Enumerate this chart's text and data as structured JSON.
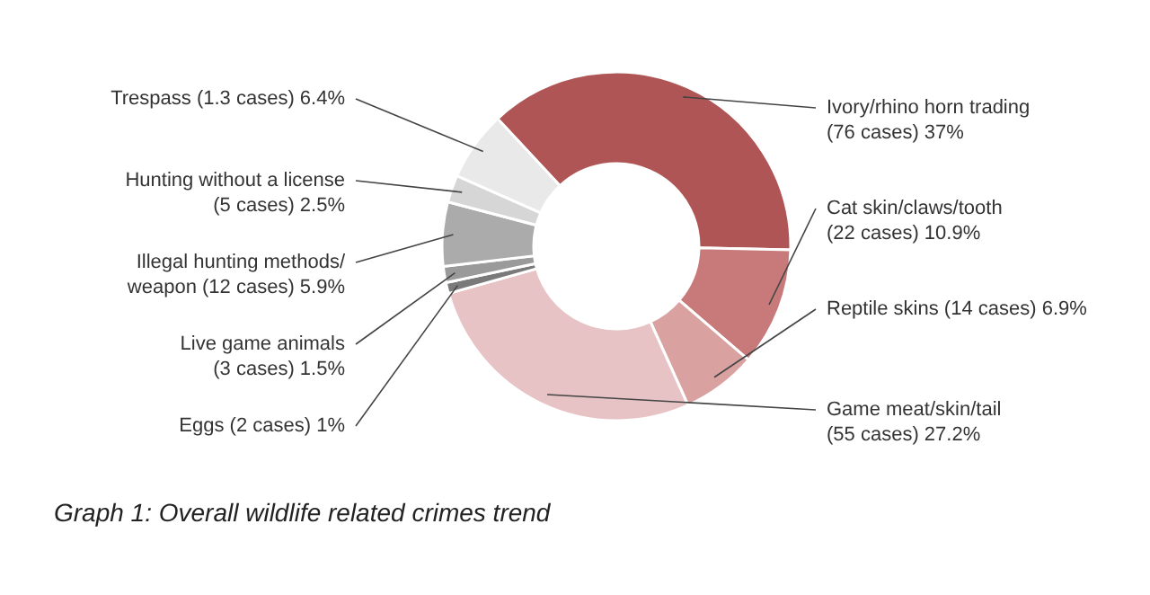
{
  "chart_data": {
    "type": "donut",
    "title": "Graph 1: Overall wildlife related crimes trend",
    "categories": [
      "Ivory/rhino horn trading\n(76 cases)",
      "Cat skin/claws/tooth\n(22 cases)",
      "Reptile skins (14 cases)",
      "Game meat/skin/tail\n(55 cases)",
      "Eggs (2 cases)",
      "Live game animals\n(3 cases)",
      "Illegal hunting methods/\nweapon (12 cases)",
      "Hunting without a license\n(5 cases)",
      "Trespass (1.3 cases)"
    ],
    "values": [
      37,
      10.9,
      6.9,
      27.2,
      1,
      1.5,
      5.9,
      2.5,
      6.4
    ],
    "value_labels": [
      "37%",
      "10.9%",
      "6.9%",
      "27.2%",
      "1%",
      "1.5%",
      "5.9%",
      "2.5%",
      "6.4%"
    ],
    "colors": [
      "#b05555",
      "#c77a79",
      "#d9a1a0",
      "#e7c3c5",
      "#7a7a7a",
      "#9a9a9a",
      "#ababab",
      "#d6d6d6",
      "#e9e9e9"
    ]
  }
}
